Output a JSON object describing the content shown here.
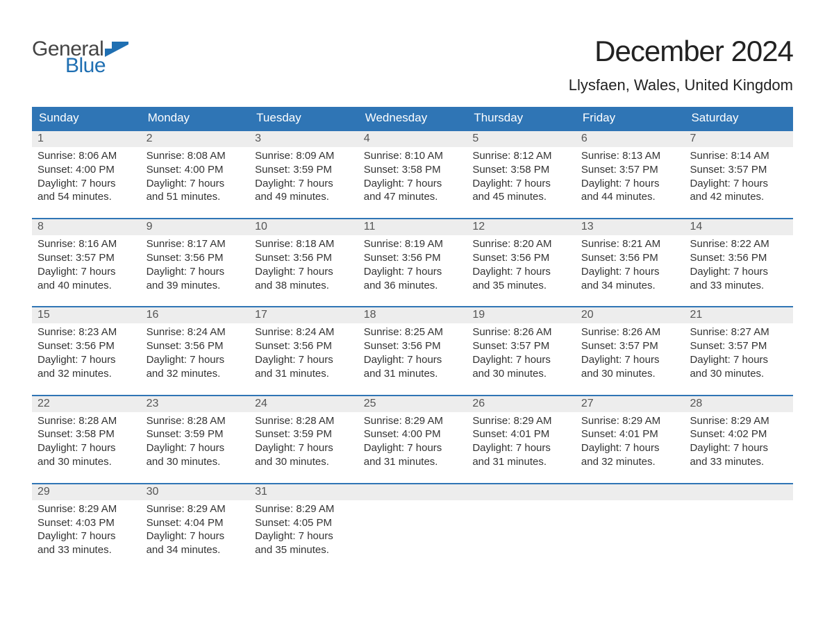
{
  "brand": {
    "word1": "General",
    "word2": "Blue",
    "word1_color": "#444444",
    "word2_color": "#1f6fb2",
    "flag_color": "#1f6fb2"
  },
  "title": "December 2024",
  "subtitle": "Llysfaen, Wales, United Kingdom",
  "header_bg": "#2f75b5",
  "header_text_color": "#ffffff",
  "daynum_bg": "#ededed",
  "week_border_color": "#2f75b5",
  "background_color": "#ffffff",
  "body_text_color": "#333333",
  "title_fontsize": 42,
  "subtitle_fontsize": 22,
  "header_fontsize": 17,
  "daynum_fontsize": 16,
  "body_fontsize": 15,
  "day_headers": [
    "Sunday",
    "Monday",
    "Tuesday",
    "Wednesday",
    "Thursday",
    "Friday",
    "Saturday"
  ],
  "labels": {
    "sunrise": "Sunrise",
    "sunset": "Sunset",
    "daylight": "Daylight"
  },
  "weeks": [
    [
      {
        "n": "1",
        "sunrise": "8:06 AM",
        "sunset": "4:00 PM",
        "daylight": "7 hours and 54 minutes."
      },
      {
        "n": "2",
        "sunrise": "8:08 AM",
        "sunset": "4:00 PM",
        "daylight": "7 hours and 51 minutes."
      },
      {
        "n": "3",
        "sunrise": "8:09 AM",
        "sunset": "3:59 PM",
        "daylight": "7 hours and 49 minutes."
      },
      {
        "n": "4",
        "sunrise": "8:10 AM",
        "sunset": "3:58 PM",
        "daylight": "7 hours and 47 minutes."
      },
      {
        "n": "5",
        "sunrise": "8:12 AM",
        "sunset": "3:58 PM",
        "daylight": "7 hours and 45 minutes."
      },
      {
        "n": "6",
        "sunrise": "8:13 AM",
        "sunset": "3:57 PM",
        "daylight": "7 hours and 44 minutes."
      },
      {
        "n": "7",
        "sunrise": "8:14 AM",
        "sunset": "3:57 PM",
        "daylight": "7 hours and 42 minutes."
      }
    ],
    [
      {
        "n": "8",
        "sunrise": "8:16 AM",
        "sunset": "3:57 PM",
        "daylight": "7 hours and 40 minutes."
      },
      {
        "n": "9",
        "sunrise": "8:17 AM",
        "sunset": "3:56 PM",
        "daylight": "7 hours and 39 minutes."
      },
      {
        "n": "10",
        "sunrise": "8:18 AM",
        "sunset": "3:56 PM",
        "daylight": "7 hours and 38 minutes."
      },
      {
        "n": "11",
        "sunrise": "8:19 AM",
        "sunset": "3:56 PM",
        "daylight": "7 hours and 36 minutes."
      },
      {
        "n": "12",
        "sunrise": "8:20 AM",
        "sunset": "3:56 PM",
        "daylight": "7 hours and 35 minutes."
      },
      {
        "n": "13",
        "sunrise": "8:21 AM",
        "sunset": "3:56 PM",
        "daylight": "7 hours and 34 minutes."
      },
      {
        "n": "14",
        "sunrise": "8:22 AM",
        "sunset": "3:56 PM",
        "daylight": "7 hours and 33 minutes."
      }
    ],
    [
      {
        "n": "15",
        "sunrise": "8:23 AM",
        "sunset": "3:56 PM",
        "daylight": "7 hours and 32 minutes."
      },
      {
        "n": "16",
        "sunrise": "8:24 AM",
        "sunset": "3:56 PM",
        "daylight": "7 hours and 32 minutes."
      },
      {
        "n": "17",
        "sunrise": "8:24 AM",
        "sunset": "3:56 PM",
        "daylight": "7 hours and 31 minutes."
      },
      {
        "n": "18",
        "sunrise": "8:25 AM",
        "sunset": "3:56 PM",
        "daylight": "7 hours and 31 minutes."
      },
      {
        "n": "19",
        "sunrise": "8:26 AM",
        "sunset": "3:57 PM",
        "daylight": "7 hours and 30 minutes."
      },
      {
        "n": "20",
        "sunrise": "8:26 AM",
        "sunset": "3:57 PM",
        "daylight": "7 hours and 30 minutes."
      },
      {
        "n": "21",
        "sunrise": "8:27 AM",
        "sunset": "3:57 PM",
        "daylight": "7 hours and 30 minutes."
      }
    ],
    [
      {
        "n": "22",
        "sunrise": "8:28 AM",
        "sunset": "3:58 PM",
        "daylight": "7 hours and 30 minutes."
      },
      {
        "n": "23",
        "sunrise": "8:28 AM",
        "sunset": "3:59 PM",
        "daylight": "7 hours and 30 minutes."
      },
      {
        "n": "24",
        "sunrise": "8:28 AM",
        "sunset": "3:59 PM",
        "daylight": "7 hours and 30 minutes."
      },
      {
        "n": "25",
        "sunrise": "8:29 AM",
        "sunset": "4:00 PM",
        "daylight": "7 hours and 31 minutes."
      },
      {
        "n": "26",
        "sunrise": "8:29 AM",
        "sunset": "4:01 PM",
        "daylight": "7 hours and 31 minutes."
      },
      {
        "n": "27",
        "sunrise": "8:29 AM",
        "sunset": "4:01 PM",
        "daylight": "7 hours and 32 minutes."
      },
      {
        "n": "28",
        "sunrise": "8:29 AM",
        "sunset": "4:02 PM",
        "daylight": "7 hours and 33 minutes."
      }
    ],
    [
      {
        "n": "29",
        "sunrise": "8:29 AM",
        "sunset": "4:03 PM",
        "daylight": "7 hours and 33 minutes."
      },
      {
        "n": "30",
        "sunrise": "8:29 AM",
        "sunset": "4:04 PM",
        "daylight": "7 hours and 34 minutes."
      },
      {
        "n": "31",
        "sunrise": "8:29 AM",
        "sunset": "4:05 PM",
        "daylight": "7 hours and 35 minutes."
      },
      {
        "empty": true
      },
      {
        "empty": true
      },
      {
        "empty": true
      },
      {
        "empty": true
      }
    ]
  ]
}
